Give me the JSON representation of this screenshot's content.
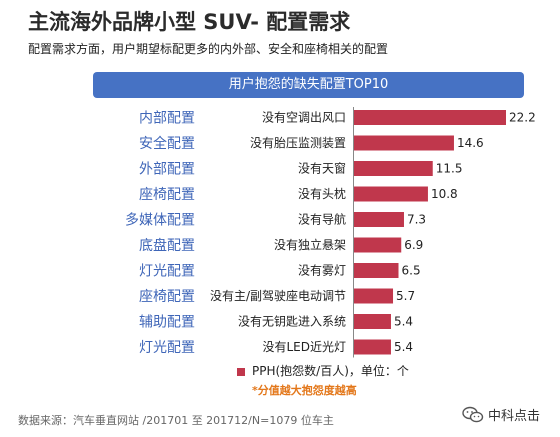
{
  "header": {
    "title": "主流海外品牌小型 SUV- 配置需求",
    "subtitle": "配置需求方面，用户期望标配更多的内外部、安全和座椅相关的配置"
  },
  "chart_data": {
    "type": "bar",
    "orientation": "horizontal",
    "title": "用户抱怨的缺失配置TOP10",
    "groups": [
      "内部配置",
      "安全配置",
      "外部配置",
      "座椅配置",
      "多媒体配置",
      "底盘配置",
      "灯光配置",
      "座椅配置",
      "辅助配置",
      "灯光配置"
    ],
    "categories": [
      "没有空调出风口",
      "没有胎压监测装置",
      "没有天窗",
      "没有头枕",
      "没有导航",
      "没有独立悬架",
      "没有雾灯",
      "没有主/副驾驶座电动调节",
      "没有无钥匙进入系统",
      "没有LED近光灯"
    ],
    "values": [
      22.2,
      14.6,
      11.5,
      10.8,
      7.3,
      6.9,
      6.5,
      5.7,
      5.4,
      5.4
    ],
    "value_labels": [
      "22.2",
      "14.6",
      "11.5",
      "10.8",
      "7.3",
      "6.9",
      "6.5",
      "5.7",
      "5.4",
      "5.4"
    ],
    "xlim": [
      0,
      22.2
    ],
    "grid": false,
    "legend": {
      "label": "PPH(抱怨数/百人)，单位：个",
      "note": "*分值越大抱怨度越高",
      "position": "bottom"
    },
    "colors": {
      "bar": "#c0374c",
      "group_label": "#3f66b8",
      "banner": "#4672c4"
    }
  },
  "footer": {
    "source": "数据来源：汽车垂直网站 /201701 至 201712/N=1079 位车主",
    "logo_text": "中科点击"
  }
}
